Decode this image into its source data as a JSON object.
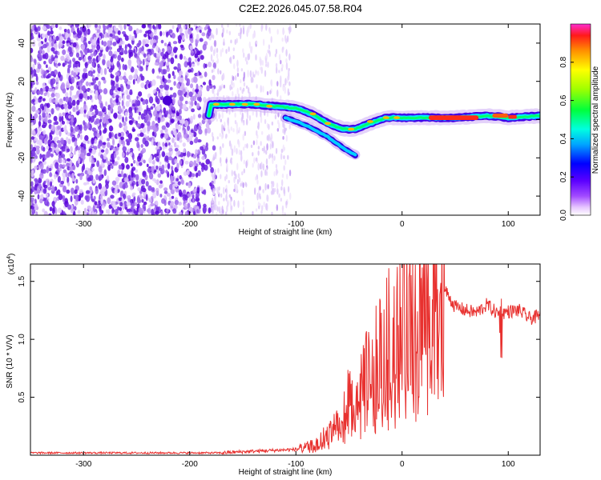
{
  "title": "C2E2.2026.045.07.58.R04",
  "chart_data": [
    {
      "type": "heatmap",
      "xlabel": "Height of straight line (km)",
      "ylabel": "Frequency (Hz)",
      "xlim": [
        -350,
        130
      ],
      "ylim": [
        -50,
        50
      ],
      "xticks": [
        "-300",
        "-200",
        "-100",
        "0",
        "100"
      ],
      "yticks": [
        "40",
        "20",
        "0",
        "-20",
        "-40"
      ],
      "colorbar": {
        "label": "Normalized spectral amplitude",
        "range": [
          0,
          1
        ],
        "ticks": [
          "0.0",
          "0.2",
          "0.4",
          "0.6",
          "0.8"
        ]
      },
      "ridge": [
        {
          "x": -180,
          "y": 8
        },
        {
          "x": -160,
          "y": 8
        },
        {
          "x": -140,
          "y": 8
        },
        {
          "x": -120,
          "y": 7
        },
        {
          "x": -100,
          "y": 6
        },
        {
          "x": -85,
          "y": 3
        },
        {
          "x": -70,
          "y": -2
        },
        {
          "x": -55,
          "y": -5
        },
        {
          "x": -45,
          "y": -5
        },
        {
          "x": -30,
          "y": -2
        },
        {
          "x": -15,
          "y": 1
        },
        {
          "x": 0,
          "y": 1
        },
        {
          "x": 20,
          "y": 1
        },
        {
          "x": 50,
          "y": 1
        },
        {
          "x": 80,
          "y": 2
        },
        {
          "x": 100,
          "y": 1
        },
        {
          "x": 130,
          "y": 2
        }
      ],
      "secondary_branch": [
        {
          "x": -110,
          "y": 1
        },
        {
          "x": -90,
          "y": -3
        },
        {
          "x": -70,
          "y": -9
        },
        {
          "x": -55,
          "y": -15
        },
        {
          "x": -43,
          "y": -19
        }
      ]
    },
    {
      "type": "line",
      "xlabel": "Height of straight line (km)",
      "ylabel": "SNR (10 * V/V)",
      "yscale_label": "(x10",
      "yscale_exp": "4",
      "xlim": [
        -350,
        130
      ],
      "ylim": [
        0,
        1.65
      ],
      "xticks": [
        "-300",
        "-200",
        "-100",
        "0",
        "100"
      ],
      "yticks": [
        "0.5",
        "1.0",
        "1.5"
      ],
      "color": "#e8312f",
      "series": [
        {
          "envelope": [
            {
              "x": -350,
              "y": 0.02
            },
            {
              "x": -170,
              "y": 0.02
            },
            {
              "x": -150,
              "y": 0.03
            },
            {
              "x": -100,
              "y": 0.05
            },
            {
              "x": -80,
              "y": 0.1
            },
            {
              "x": -60,
              "y": 0.3
            },
            {
              "x": -50,
              "y": 0.5
            },
            {
              "x": -40,
              "y": 0.6
            },
            {
              "x": -30,
              "y": 0.75
            },
            {
              "x": -20,
              "y": 0.9
            },
            {
              "x": -10,
              "y": 1.1
            },
            {
              "x": 0,
              "y": 1.2
            },
            {
              "x": 10,
              "y": 1.25
            },
            {
              "x": 20,
              "y": 1.35
            },
            {
              "x": 30,
              "y": 1.43
            },
            {
              "x": 40,
              "y": 1.43
            },
            {
              "x": 50,
              "y": 1.28
            },
            {
              "x": 60,
              "y": 1.25
            },
            {
              "x": 70,
              "y": 1.23
            },
            {
              "x": 80,
              "y": 1.3
            },
            {
              "x": 90,
              "y": 1.22
            },
            {
              "x": 100,
              "y": 1.24
            },
            {
              "x": 110,
              "y": 1.25
            },
            {
              "x": 120,
              "y": 1.18
            },
            {
              "x": 130,
              "y": 1.2
            }
          ]
        }
      ]
    }
  ]
}
